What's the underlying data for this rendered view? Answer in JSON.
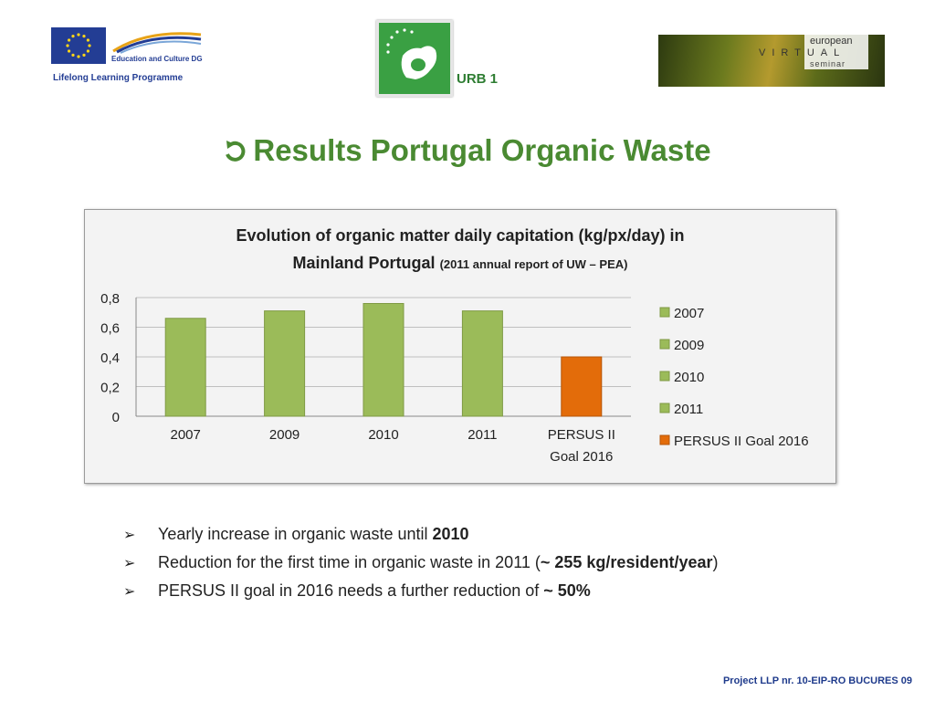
{
  "header": {
    "llp_dg": "Education and Culture DG",
    "llp_name": "Lifelong Learning Programme",
    "urb_label": "URB 1",
    "evs_european": "european",
    "evs_virtual": "VIRTUAL",
    "evs_seminar": "seminar"
  },
  "slide": {
    "title": "Results Portugal Organic Waste"
  },
  "chart_data": {
    "type": "bar",
    "title": "Evolution of organic matter daily capitation (kg/px/day) in",
    "title_line2": "Mainland Portugal",
    "subtitle": "(2011 annual report of UW – PEA)",
    "categories": [
      "2007",
      "2009",
      "2010",
      "2011",
      "PERSUS II Goal 2016"
    ],
    "values": [
      0.66,
      0.71,
      0.76,
      0.71,
      0.4
    ],
    "colors": [
      "#9bbb59",
      "#9bbb59",
      "#9bbb59",
      "#9bbb59",
      "#e36c0a"
    ],
    "ylim": [
      0,
      0.8
    ],
    "yticks": [
      "0",
      "0,2",
      "0,4",
      "0,6",
      "0,8"
    ],
    "grid": true,
    "legend_position": "right",
    "legend": [
      {
        "name": "2007",
        "color": "#9bbb59"
      },
      {
        "name": "2009",
        "color": "#9bbb59"
      },
      {
        "name": "2010",
        "color": "#9bbb59"
      },
      {
        "name": "2011",
        "color": "#9bbb59"
      },
      {
        "name": "PERSUS II Goal 2016",
        "color": "#e36c0a"
      }
    ],
    "xlabel": "",
    "ylabel": ""
  },
  "bullets": [
    {
      "text": "Yearly increase in organic waste until ",
      "bold": "2010",
      "after": ""
    },
    {
      "text": "Reduction for the first time in organic waste in 2011 (",
      "bold": "~ 255 kg/resident/year",
      "after": ")"
    },
    {
      "text": "PERSUS II goal in 2016 needs a further reduction of ",
      "bold": "~ 50%",
      "after": ""
    }
  ],
  "footer": {
    "text": "Project LLP nr. 10-EIP-RO BUCURES 09"
  }
}
